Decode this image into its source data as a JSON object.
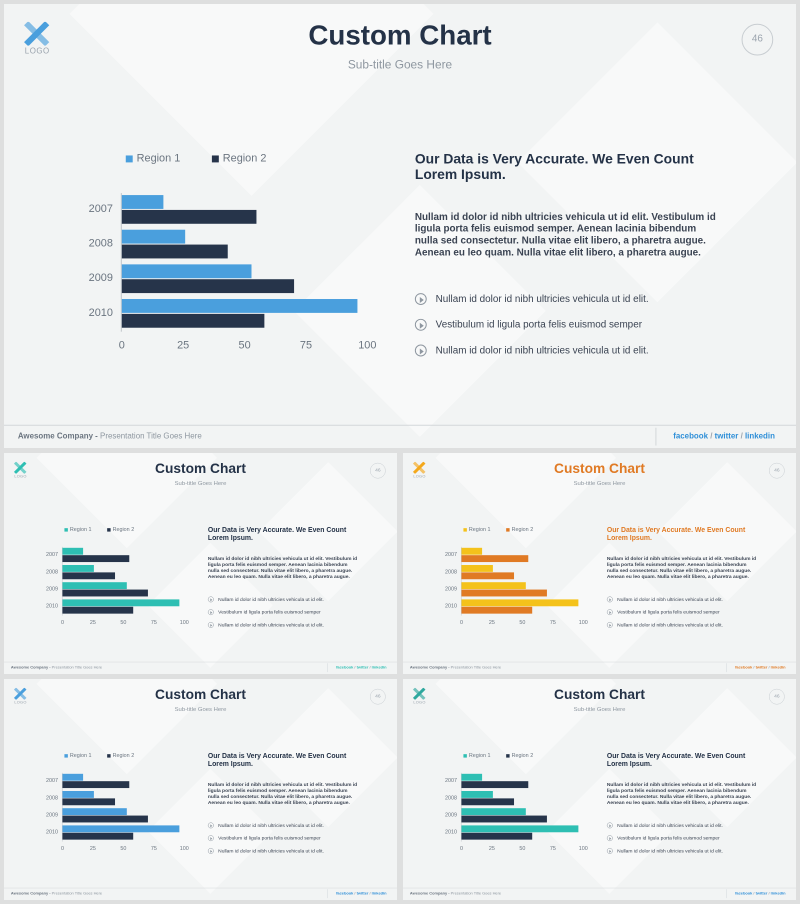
{
  "slides": [
    {
      "logo_text": "LOGO",
      "title": "Custom Chart",
      "subtitle": "Sub-title Goes Here",
      "page_number": "46",
      "legend": [
        "Region 1",
        "Region 2"
      ],
      "heading": "Our Data is Very Accurate. We Even Count Lorem Ipsum.",
      "body": "Nullam id dolor id nibh ultricies vehicula ut id elit. Vestibulum id ligula porta felis euismod semper. Aenean lacinia bibendum nulla sed consectetur. Nulla vitae elit libero, a pharetra augue. Aenean eu leo quam. Nulla vitae elit libero, a pharetra augue.",
      "bullets": [
        "Nullam id dolor id nibh ultricies vehicula ut id elit.",
        "Vestibulum id ligula porta felis euismod semper",
        "Nullam id dolor id nibh ultricies vehicula ut id elit."
      ],
      "footer_company": "Awesome Company -",
      "footer_title": "Presentation Title Goes Here",
      "social": {
        "facebook": "facebook",
        "twitter": "twitter",
        "linkedin": "linkedin",
        "separator": " / "
      },
      "colors": {
        "region1": "#4a9fdd",
        "region2": "#26344a",
        "title": "#243247",
        "accent": "#2f8fd8",
        "logo": "#4a9fdd"
      },
      "chart_data": {
        "type": "bar",
        "orientation": "horizontal",
        "categories": [
          "2007",
          "2008",
          "2009",
          "2010"
        ],
        "series": [
          {
            "name": "Region 1",
            "values": [
              17,
              26,
              53,
              96
            ]
          },
          {
            "name": "Region 2",
            "values": [
              55,
              43,
              70,
              58
            ]
          }
        ],
        "x_ticks": [
          "0",
          "25",
          "50",
          "75",
          "100"
        ],
        "xlim": [
          0,
          100
        ]
      }
    },
    {
      "logo_text": "LOGO",
      "title": "Custom Chart",
      "subtitle": "Sub-title Goes Here",
      "page_number": "46",
      "legend": [
        "Region 1",
        "Region 2"
      ],
      "heading": "Our Data is Very Accurate. We Even Count Lorem Ipsum.",
      "body": "Nullam id dolor id nibh ultricies vehicula ut id elit. Vestibulum id ligula porta felis euismod semper. Aenean lacinia bibendum nulla sed consectetur. Nulla vitae elit libero, a pharetra augue. Aenean eu leo quam. Nulla vitae elit libero, a pharetra augue.",
      "bullets": [
        "Nullam id dolor id nibh ultricies vehicula ut id elit.",
        "Vestibulum id ligula porta felis euismod semper",
        "Nullam id dolor id nibh ultricies vehicula ut id elit."
      ],
      "footer_company": "Awesome Company -",
      "footer_title": "Presentation Title Goes Here",
      "social": {
        "facebook": "facebook",
        "twitter": "twitter",
        "linkedin": "linkedin",
        "separator": " / "
      },
      "colors": {
        "region1": "#2ebfb3",
        "region2": "#26344a",
        "title": "#243247",
        "accent": "#2ebfb3",
        "logo": "#2ebfb3"
      },
      "chart_data": {
        "type": "bar",
        "orientation": "horizontal",
        "categories": [
          "2007",
          "2008",
          "2009",
          "2010"
        ],
        "series": [
          {
            "name": "Region 1",
            "values": [
              17,
              26,
              53,
              96
            ]
          },
          {
            "name": "Region 2",
            "values": [
              55,
              43,
              70,
              58
            ]
          }
        ],
        "x_ticks": [
          "0",
          "25",
          "50",
          "75",
          "100"
        ],
        "xlim": [
          0,
          100
        ]
      }
    },
    {
      "logo_text": "LOGO",
      "title": "Custom Chart",
      "subtitle": "Sub-title Goes Here",
      "page_number": "46",
      "legend": [
        "Region 1",
        "Region 2"
      ],
      "heading": "Our Data is Very Accurate. We Even Count Lorem Ipsum.",
      "body": "Nullam id dolor id nibh ultricies vehicula ut id elit. Vestibulum id ligula porta felis euismod semper. Aenean lacinia bibendum nulla sed consectetur. Nulla vitae elit libero, a pharetra augue. Aenean eu leo quam. Nulla vitae elit libero, a pharetra augue.",
      "bullets": [
        "Nullam id dolor id nibh ultricies vehicula ut id elit.",
        "Vestibulum id ligula porta felis euismod semper",
        "Nullam id dolor id nibh ultricies vehicula ut id elit."
      ],
      "footer_company": "Awesome Company -",
      "footer_title": "Presentation Title Goes Here",
      "social": {
        "facebook": "facebook",
        "twitter": "twitter",
        "linkedin": "linkedin",
        "separator": " / "
      },
      "colors": {
        "region1": "#f4c21b",
        "region2": "#e07a24",
        "title": "#e07a24",
        "accent": "#e07a24",
        "logo": "#f4a81b"
      },
      "chart_data": {
        "type": "bar",
        "orientation": "horizontal",
        "categories": [
          "2007",
          "2008",
          "2009",
          "2010"
        ],
        "series": [
          {
            "name": "Region 1",
            "values": [
              17,
              26,
              53,
              96
            ]
          },
          {
            "name": "Region 2",
            "values": [
              55,
              43,
              70,
              58
            ]
          }
        ],
        "x_ticks": [
          "0",
          "25",
          "50",
          "75",
          "100"
        ],
        "xlim": [
          0,
          100
        ]
      }
    },
    {
      "logo_text": "LOGO",
      "title": "Custom Chart",
      "subtitle": "Sub-title Goes Here",
      "page_number": "46",
      "legend": [
        "Region 1",
        "Region 2"
      ],
      "heading": "Our Data is Very Accurate. We Even Count Lorem Ipsum.",
      "body": "Nullam id dolor id nibh ultricies vehicula ut id elit. Vestibulum id ligula porta felis euismod semper. Aenean lacinia bibendum nulla sed consectetur. Nulla vitae elit libero, a pharetra augue. Aenean eu leo quam. Nulla vitae elit libero, a pharetra augue.",
      "bullets": [
        "Nullam id dolor id nibh ultricies vehicula ut id elit.",
        "Vestibulum id ligula porta felis euismod semper",
        "Nullam id dolor id nibh ultricies vehicula ut id elit."
      ],
      "footer_company": "Awesome Company -",
      "footer_title": "Presentation Title Goes Here",
      "social": {
        "facebook": "facebook",
        "twitter": "twitter",
        "linkedin": "linkedin",
        "separator": " / "
      },
      "colors": {
        "region1": "#4a9fdd",
        "region2": "#26344a",
        "title": "#243247",
        "accent": "#2f8fd8",
        "logo": "#4a9fdd"
      },
      "chart_data": {
        "type": "bar",
        "orientation": "horizontal",
        "categories": [
          "2007",
          "2008",
          "2009",
          "2010"
        ],
        "series": [
          {
            "name": "Region 1",
            "values": [
              17,
              26,
              53,
              96
            ]
          },
          {
            "name": "Region 2",
            "values": [
              55,
              43,
              70,
              58
            ]
          }
        ],
        "x_ticks": [
          "0",
          "25",
          "50",
          "75",
          "100"
        ],
        "xlim": [
          0,
          100
        ]
      }
    },
    {
      "logo_text": "LOGO",
      "title": "Custom Chart",
      "subtitle": "Sub-title Goes Here",
      "page_number": "46",
      "legend": [
        "Region 1",
        "Region 2"
      ],
      "heading": "Our Data is Very Accurate. We Even Count Lorem Ipsum.",
      "body": "Nullam id dolor id nibh ultricies vehicula ut id elit. Vestibulum id ligula porta felis euismod semper. Aenean lacinia bibendum nulla sed consectetur. Nulla vitae elit libero, a pharetra augue. Aenean eu leo quam. Nulla vitae elit libero, a pharetra augue.",
      "bullets": [
        "Nullam id dolor id nibh ultricies vehicula ut id elit.",
        "Vestibulum id ligula porta felis euismod semper",
        "Nullam id dolor id nibh ultricies vehicula ut id elit."
      ],
      "footer_company": "Awesome Company -",
      "footer_title": "Presentation Title Goes Here",
      "social": {
        "facebook": "facebook",
        "twitter": "twitter",
        "linkedin": "linkedin",
        "separator": " / "
      },
      "colors": {
        "region1": "#2ebfb3",
        "region2": "#26344a",
        "title": "#243247",
        "accent": "#2f8fd8",
        "logo": "#2ea89e"
      },
      "chart_data": {
        "type": "bar",
        "orientation": "horizontal",
        "categories": [
          "2007",
          "2008",
          "2009",
          "2010"
        ],
        "series": [
          {
            "name": "Region 1",
            "values": [
              17,
              26,
              53,
              96
            ]
          },
          {
            "name": "Region 2",
            "values": [
              55,
              43,
              70,
              58
            ]
          }
        ],
        "x_ticks": [
          "0",
          "25",
          "50",
          "75",
          "100"
        ],
        "xlim": [
          0,
          100
        ]
      }
    }
  ]
}
